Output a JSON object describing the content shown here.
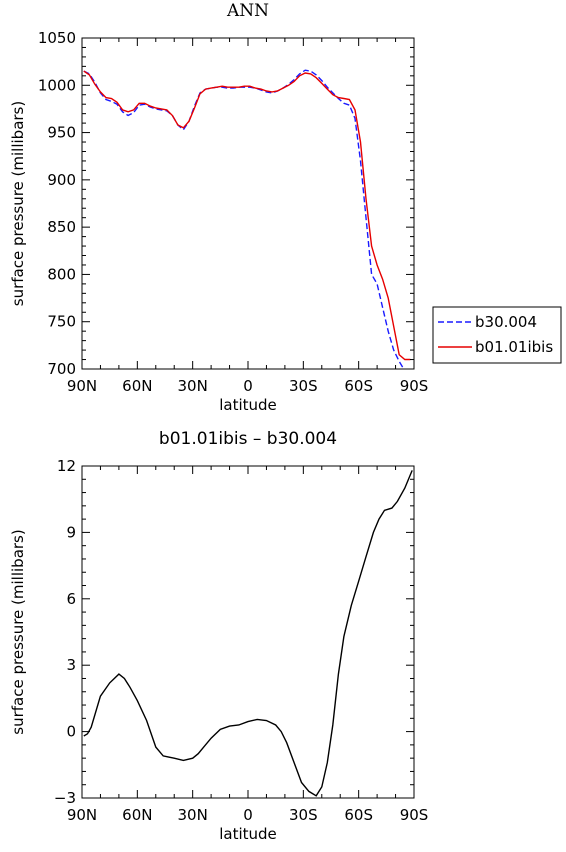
{
  "chart_data": [
    {
      "type": "line",
      "title": "ANN",
      "xlabel": "latitude",
      "ylabel": "surface pressure (millibars)",
      "xlim": [
        -90,
        90
      ],
      "ylim": [
        700,
        1050
      ],
      "x_ticks": [
        -90,
        -60,
        -30,
        0,
        30,
        60,
        90
      ],
      "x_tick_labels": [
        "90N",
        "60N",
        "30N",
        "0",
        "30S",
        "60S",
        "90S"
      ],
      "y_ticks": [
        700,
        750,
        800,
        850,
        900,
        950,
        1000,
        1050
      ],
      "y_tick_labels": [
        "700",
        "750",
        "800",
        "850",
        "900",
        "950",
        "1000",
        "1050"
      ],
      "legend_position": "right",
      "series": [
        {
          "name": "b30.004",
          "color": "#1a1aff",
          "dashed": true,
          "x": [
            -89,
            -86,
            -83,
            -80,
            -77,
            -74,
            -71,
            -68,
            -65,
            -62,
            -59,
            -56,
            -53,
            -50,
            -47,
            -44,
            -41,
            -38,
            -35,
            -32,
            -29,
            -26,
            -23,
            -20,
            -17,
            -14,
            -11,
            -8,
            -5,
            -2,
            1,
            4,
            7,
            10,
            13,
            16,
            19,
            22,
            25,
            28,
            31,
            34,
            37,
            40,
            43,
            46,
            49,
            52,
            55,
            58,
            61,
            64,
            67,
            70,
            73,
            76,
            79,
            82,
            85,
            88,
            89
          ],
          "y": [
            1015,
            1012,
            1003,
            992,
            985,
            983,
            980,
            972,
            968,
            971,
            979,
            980,
            977,
            975,
            974,
            973,
            968,
            958,
            953,
            962,
            978,
            992,
            996,
            997,
            998,
            998,
            997,
            997,
            998,
            998,
            998,
            997,
            995,
            993,
            992,
            994,
            997,
            1001,
            1006,
            1012,
            1016,
            1015,
            1011,
            1005,
            998,
            992,
            986,
            981,
            979,
            965,
            920,
            860,
            800,
            790,
            765,
            740,
            720,
            708,
            698,
            698,
            698
          ]
        },
        {
          "name": "b01.01ibis",
          "color": "#e60000",
          "dashed": false,
          "x": [
            -89,
            -86,
            -83,
            -80,
            -77,
            -74,
            -71,
            -68,
            -65,
            -62,
            -59,
            -56,
            -53,
            -50,
            -47,
            -44,
            -41,
            -38,
            -35,
            -32,
            -29,
            -26,
            -23,
            -20,
            -17,
            -14,
            -11,
            -8,
            -5,
            -2,
            1,
            4,
            7,
            10,
            13,
            16,
            19,
            22,
            25,
            28,
            31,
            34,
            37,
            40,
            43,
            46,
            49,
            52,
            55,
            58,
            61,
            64,
            67,
            70,
            73,
            76,
            79,
            82,
            85,
            88
          ],
          "y": [
            1015,
            1011,
            1001,
            993,
            987,
            986,
            982,
            974,
            972,
            974,
            981,
            981,
            978,
            976,
            975,
            974,
            968,
            958,
            955,
            962,
            976,
            991,
            996,
            997,
            998,
            999,
            998,
            998,
            998,
            999,
            999,
            997,
            996,
            994,
            993,
            994,
            997,
            1000,
            1004,
            1010,
            1013,
            1012,
            1008,
            1002,
            996,
            990,
            987,
            986,
            985,
            974,
            940,
            880,
            830,
            810,
            795,
            775,
            745,
            715,
            710,
            710
          ]
        }
      ]
    },
    {
      "type": "line",
      "title": "b01.01ibis – b30.004",
      "xlabel": "latitude",
      "ylabel": "surface pressure (millibars)",
      "xlim": [
        -90,
        90
      ],
      "ylim": [
        -3,
        12
      ],
      "x_ticks": [
        -90,
        -60,
        -30,
        0,
        30,
        60,
        90
      ],
      "x_tick_labels": [
        "90N",
        "60N",
        "30N",
        "0",
        "30S",
        "60S",
        "90S"
      ],
      "y_ticks": [
        -3,
        0,
        3,
        6,
        9,
        12
      ],
      "y_tick_labels": [
        "−3",
        "0",
        "3",
        "6",
        "9",
        "12"
      ],
      "series": [
        {
          "color": "#000000",
          "dashed": false,
          "x": [
            -89,
            -87,
            -85,
            -80,
            -75,
            -70,
            -67,
            -64,
            -60,
            -55,
            -50,
            -46,
            -43,
            -40,
            -35,
            -30,
            -27,
            -24,
            -20,
            -15,
            -10,
            -5,
            0,
            5,
            10,
            15,
            18,
            21,
            25,
            29,
            33,
            37,
            40,
            43,
            46,
            49,
            52,
            56,
            60,
            64,
            68,
            71,
            74,
            78,
            81,
            85,
            88,
            89
          ],
          "y": [
            -0.2,
            -0.1,
            0.2,
            1.6,
            2.2,
            2.6,
            2.4,
            2.0,
            1.4,
            0.5,
            -0.7,
            -1.1,
            -1.15,
            -1.2,
            -1.3,
            -1.2,
            -1.0,
            -0.7,
            -0.3,
            0.1,
            0.25,
            0.3,
            0.45,
            0.55,
            0.5,
            0.3,
            0.0,
            -0.5,
            -1.4,
            -2.3,
            -2.7,
            -2.9,
            -2.5,
            -1.4,
            0.3,
            2.6,
            4.3,
            5.7,
            6.8,
            7.9,
            9.0,
            9.6,
            10.0,
            10.1,
            10.4,
            11.0,
            11.6,
            11.8
          ]
        }
      ]
    }
  ]
}
